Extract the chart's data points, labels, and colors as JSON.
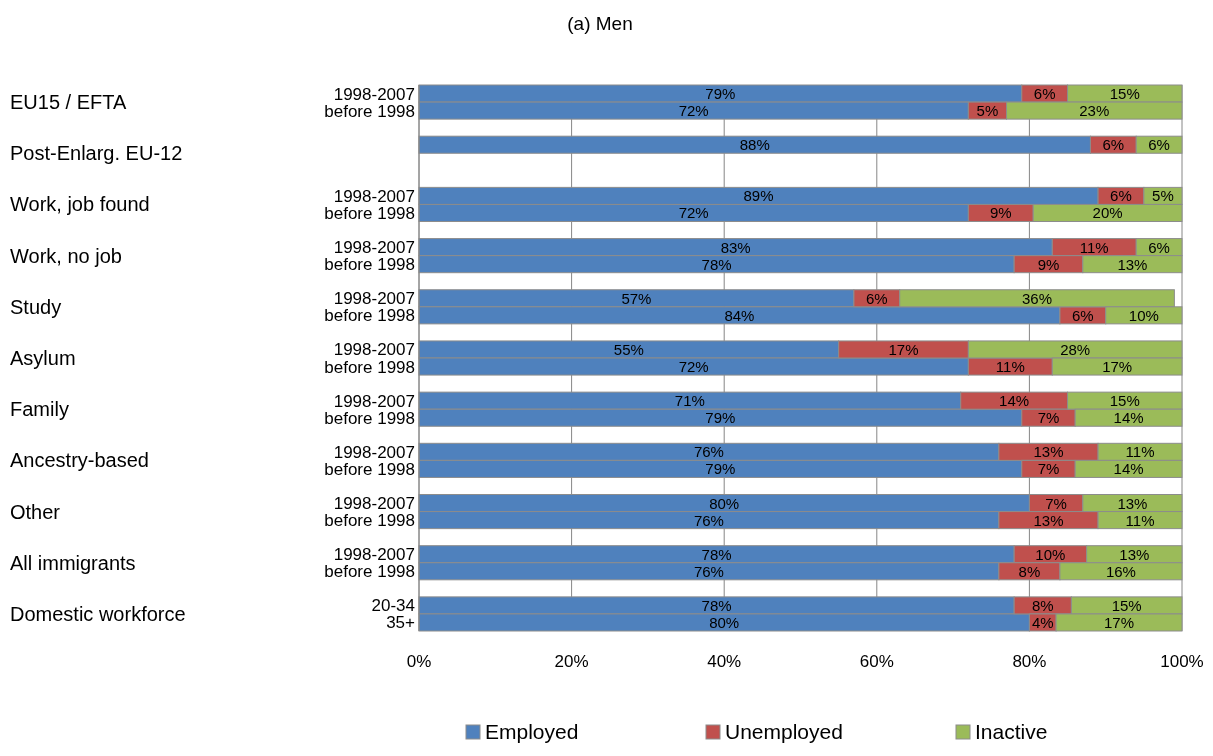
{
  "chart_data": {
    "type": "bar",
    "orientation": "horizontal",
    "stacked": true,
    "title": "(a) Men",
    "categories": [
      "1998-2007",
      "before 1998",
      null,
      null,
      null,
      null,
      "1998-2007",
      "before 1998",
      null,
      "1998-2007",
      "before 1998",
      null,
      "1998-2007",
      "before 1998",
      null,
      "1998-2007",
      "before 1998",
      null,
      "1998-2007",
      "before 1998",
      null,
      "1998-2007",
      "before 1998",
      null,
      "1998-2007",
      "before 1998",
      null,
      "1998-2007",
      "before 1998",
      null,
      "20-34",
      "35+"
    ],
    "series": [
      {
        "name": "Employed",
        "color": "#4f81bd",
        "values": [
          79,
          72,
          null,
          88,
          null,
          null,
          89,
          72,
          null,
          83,
          78,
          null,
          57,
          84,
          null,
          55,
          72,
          null,
          71,
          79,
          null,
          76,
          79,
          null,
          80,
          76,
          null,
          78,
          76,
          null,
          78,
          80
        ],
        "value_labels": [
          "79%",
          "72%",
          null,
          "88%",
          null,
          null,
          "89%",
          "72%",
          null,
          "83%",
          "78%",
          null,
          "57%",
          "84%",
          null,
          "55%",
          "72%",
          null,
          "71%",
          "79%",
          null,
          "76%",
          "79%",
          null,
          "80%",
          "76%",
          null,
          "78%",
          "76%",
          null,
          "78%",
          "80%"
        ]
      },
      {
        "name": "Unemployed",
        "color": "#c0504d",
        "values": [
          6,
          5,
          null,
          6,
          null,
          null,
          6,
          8.5,
          null,
          11,
          9,
          null,
          6,
          6,
          null,
          17,
          11,
          null,
          14,
          7,
          null,
          13,
          7,
          null,
          7,
          13,
          null,
          9.5,
          8,
          null,
          7.5,
          3.5
        ],
        "value_labels": [
          "6%",
          "5%",
          null,
          "6%",
          null,
          null,
          "6%",
          "9%",
          null,
          "11%",
          "9%",
          null,
          "6%",
          "6%",
          null,
          "17%",
          "11%",
          null,
          "14%",
          "7%",
          null,
          "13%",
          "7%",
          null,
          "7%",
          "13%",
          null,
          "10%",
          "8%",
          null,
          "8%",
          "4%"
        ]
      },
      {
        "name": "Inactive",
        "color": "#9bbb59",
        "values": [
          15,
          23,
          null,
          6,
          null,
          null,
          5,
          19.5,
          null,
          6,
          13,
          null,
          36,
          10,
          null,
          28,
          17,
          null,
          15,
          14,
          null,
          11,
          14,
          null,
          13,
          11,
          null,
          12.5,
          16,
          null,
          14.5,
          16.5
        ],
        "value_labels": [
          "15%",
          "23%",
          null,
          "6%",
          null,
          null,
          "5%",
          "20%",
          null,
          "6%",
          "13%",
          null,
          "36%",
          "10%",
          null,
          "28%",
          "17%",
          null,
          "15%",
          "14%",
          null,
          "11%",
          "14%",
          null,
          "13%",
          "11%",
          null,
          "13%",
          "16%",
          null,
          "15%",
          "17%"
        ]
      }
    ],
    "xlim": [
      0,
      100
    ],
    "xticks": [
      {
        "value": 0,
        "label": "0%"
      },
      {
        "value": 20,
        "label": "20%"
      },
      {
        "value": 40,
        "label": "40%"
      },
      {
        "value": 60,
        "label": "60%"
      },
      {
        "value": 80,
        "label": "80%"
      },
      {
        "value": 100,
        "label": "100%"
      }
    ],
    "grid": "x",
    "legend": "bottom",
    "annotations": [
      "EU15 / EFTA",
      "Post-Enlarg. EU-12",
      "Work, job found",
      "Work, no job",
      "Study",
      "Asylum",
      "Family",
      "Ancestry-based",
      "Other",
      "All immigrants",
      "Domestic workforce"
    ]
  }
}
